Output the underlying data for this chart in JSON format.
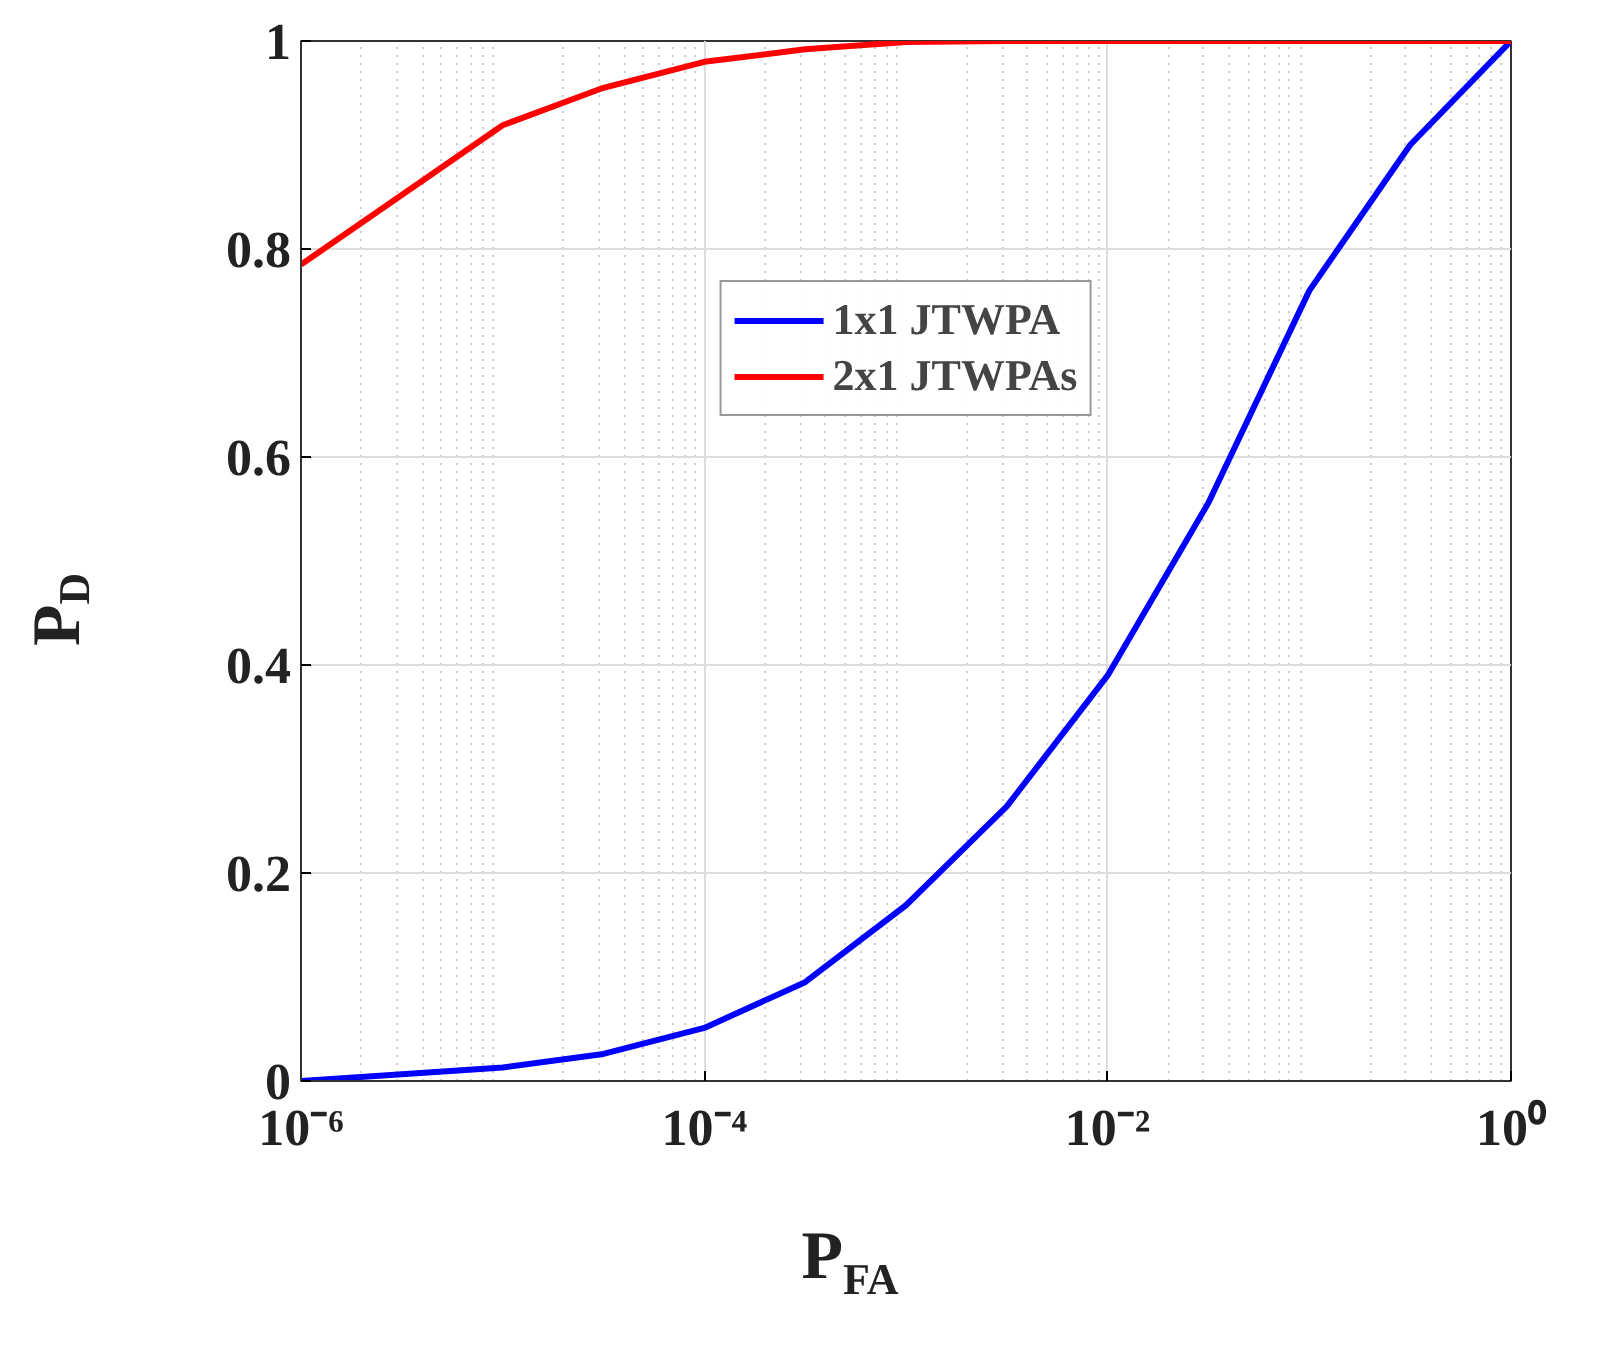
{
  "chart_data": {
    "type": "line",
    "xlabel": "P$_{FA}$",
    "ylabel": "P$_{D}$",
    "x": [
      1e-06,
      1e-05,
      3.16e-05,
      0.0001,
      0.000316,
      0.001,
      0.00316,
      0.01,
      0.0316,
      0.1,
      0.316,
      1
    ],
    "series": [
      {
        "name": "1x1 JTWPA",
        "color": "#0000ff",
        "values": [
          0.0,
          0.013,
          0.026,
          0.051,
          0.095,
          0.169,
          0.264,
          0.39,
          0.556,
          0.76,
          0.9,
          1.0
        ]
      },
      {
        "name": "2x1 JTWPAs",
        "color": "#ff0000",
        "values": [
          0.785,
          0.919,
          0.955,
          0.98,
          0.992,
          0.999,
          1.0,
          1.0,
          1.0,
          1.0,
          1.0,
          1.0
        ]
      }
    ],
    "log": "x",
    "xlim": [
      1e-06,
      1
    ],
    "xticks": [
      {
        "value": 1e-06,
        "label": "10⁻⁶"
      },
      {
        "value": 0.0001,
        "label": "10⁻⁴"
      },
      {
        "value": 0.01,
        "label": "10⁻²"
      },
      {
        "value": 1,
        "label": "10⁰"
      }
    ],
    "ylim": [
      0,
      1
    ],
    "yticks": [
      0,
      0.2,
      0.4,
      0.6,
      0.8,
      1
    ],
    "grid": true,
    "legend": "top",
    "line_style": "solid",
    "marker": "none"
  }
}
